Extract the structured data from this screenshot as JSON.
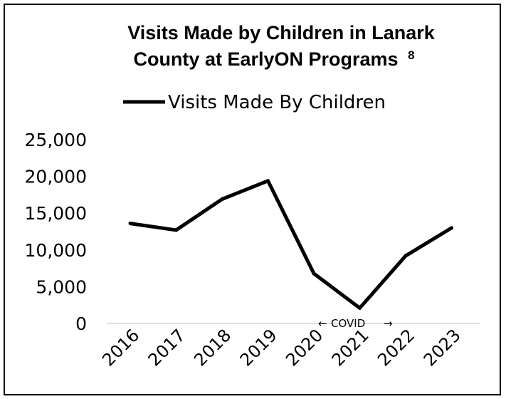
{
  "chart_data": {
    "type": "line",
    "title_line1": "Visits Made by Children in Lanark",
    "title_line2": "County at EarlyON Programs",
    "title_footnote": "8",
    "x": [
      "2016",
      "2017",
      "2018",
      "2019",
      "2020",
      "2021",
      "2022",
      "2023"
    ],
    "series": [
      {
        "name": "Visits Made By Children",
        "values": [
          13600,
          12700,
          16900,
          19400,
          6800,
          2100,
          9200,
          13000
        ]
      }
    ],
    "y_ticks": [
      "25,000",
      "20,000",
      "15,000",
      "10,000",
      "5,000",
      "0"
    ],
    "ylim": [
      0,
      25000
    ],
    "legend_position": "top-center",
    "grid": false,
    "line_color": "#000000",
    "annotation": {
      "text": "COVID",
      "left_arrow": "←",
      "right_arrow": "→",
      "from": "2020",
      "to": "2022"
    }
  }
}
